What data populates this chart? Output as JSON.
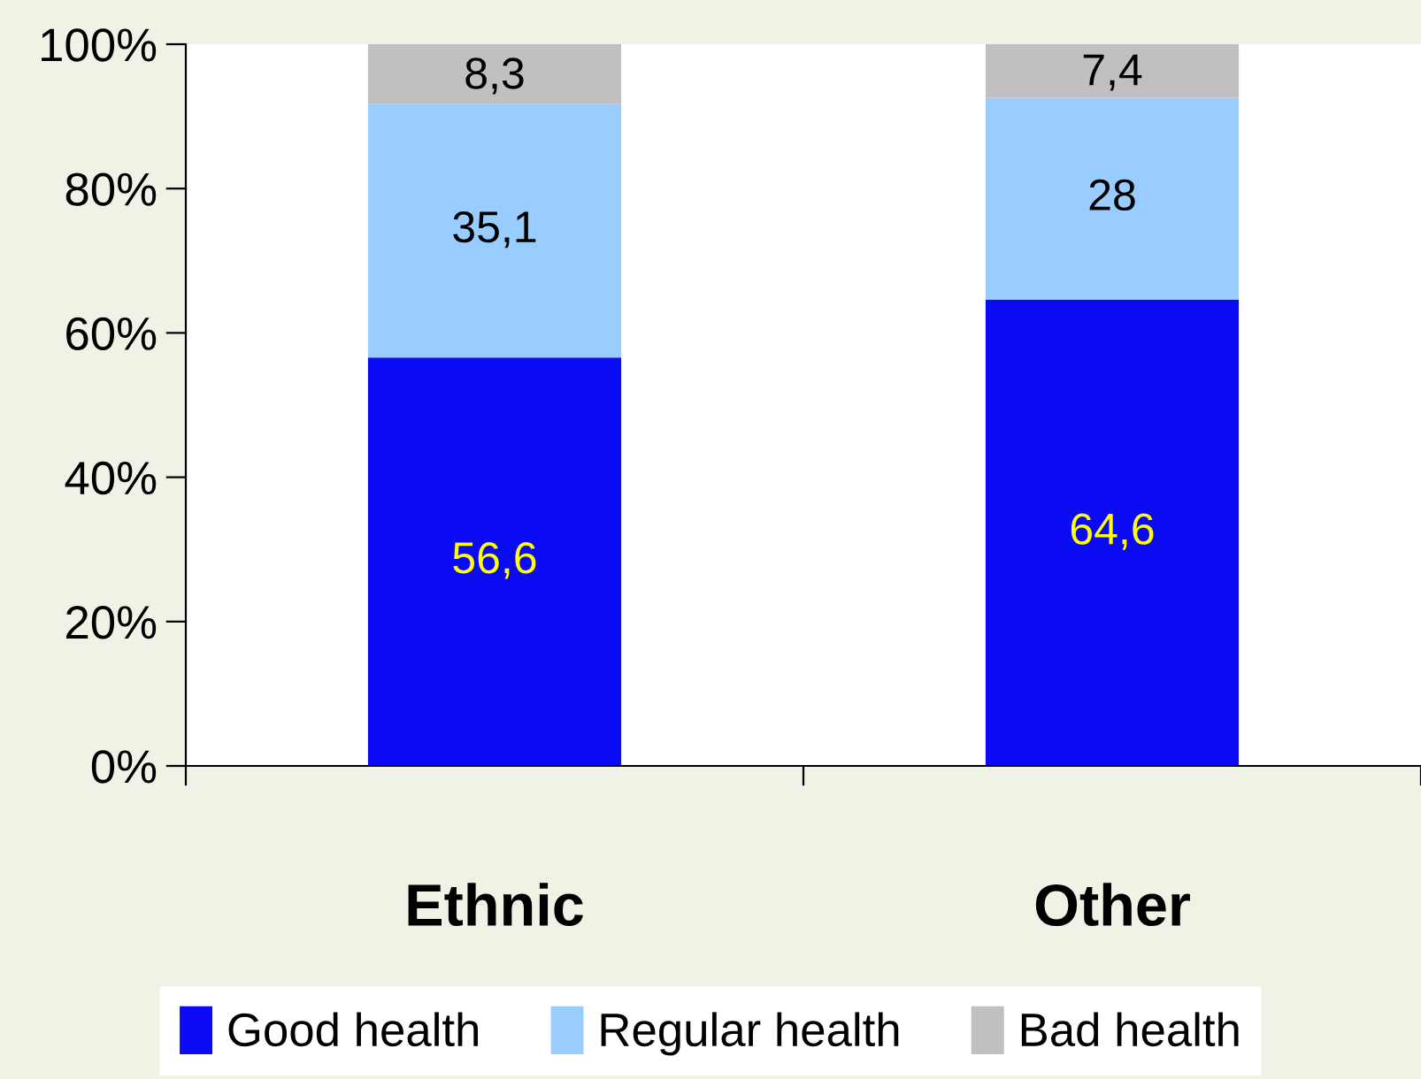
{
  "chart_data": {
    "type": "bar",
    "stacked": true,
    "categories": [
      "Ethnic",
      "Other"
    ],
    "series": [
      {
        "name": "Good health",
        "color": "#0a0af5",
        "values": [
          56.6,
          64.6
        ],
        "value_labels": [
          "56,6",
          "64,6"
        ]
      },
      {
        "name": "Regular health",
        "color": "#99ccff",
        "values": [
          35.1,
          28
        ],
        "value_labels": [
          "35,1",
          "28"
        ]
      },
      {
        "name": "Bad health",
        "color": "#c0c0c0",
        "values": [
          8.3,
          7.4
        ],
        "value_labels": [
          "8,3",
          "7,4"
        ]
      }
    ],
    "ylim": [
      0,
      100
    ],
    "yticks": [
      {
        "value": 0,
        "label": "0%"
      },
      {
        "value": 20,
        "label": "20%"
      },
      {
        "value": 40,
        "label": "40%"
      },
      {
        "value": 60,
        "label": "60%"
      },
      {
        "value": 80,
        "label": "80%"
      },
      {
        "value": 100,
        "label": "100%"
      }
    ],
    "grid": false,
    "legend": "bottom"
  }
}
